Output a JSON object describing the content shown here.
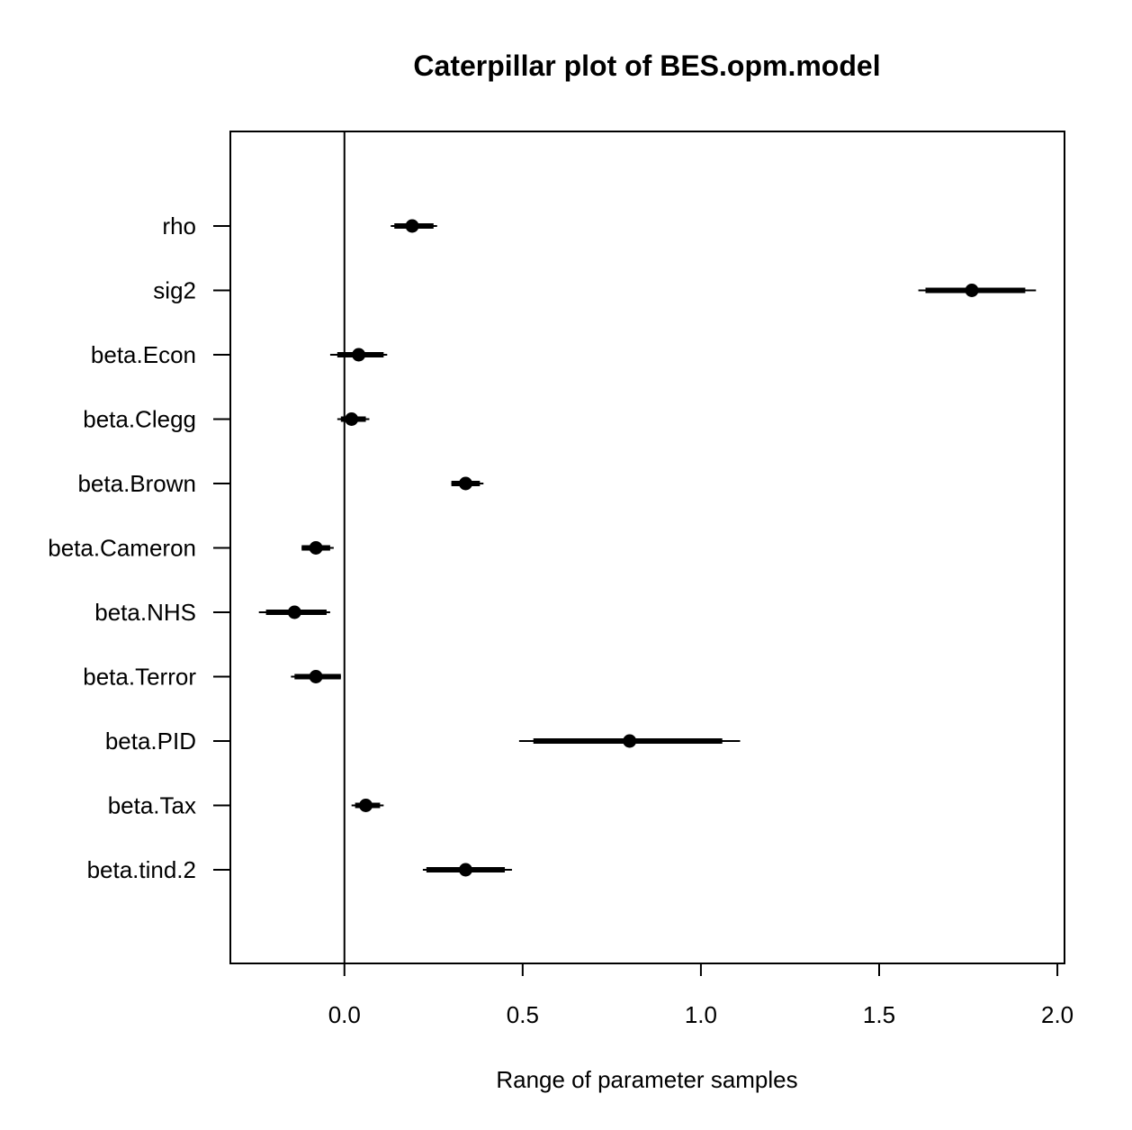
{
  "chart_data": {
    "type": "caterpillar",
    "title": "Caterpillar plot of BES.opm.model",
    "xlabel": "Range of parameter samples",
    "ylabel": "",
    "xlim": [
      -0.32,
      2.02
    ],
    "xticks": [
      0.0,
      0.5,
      1.0,
      1.5,
      2.0
    ],
    "xtick_labels": [
      "0.0",
      "0.5",
      "1.0",
      "1.5",
      "2.0"
    ],
    "reference_line_x": 0.0,
    "grid": false,
    "legend": "none",
    "color": "#000000",
    "parameters": [
      {
        "name": "rho",
        "median": 0.19,
        "inner": [
          0.14,
          0.25
        ],
        "outer": [
          0.13,
          0.26
        ]
      },
      {
        "name": "sig2",
        "median": 1.76,
        "inner": [
          1.63,
          1.91
        ],
        "outer": [
          1.61,
          1.94
        ]
      },
      {
        "name": "beta.Econ",
        "median": 0.04,
        "inner": [
          -0.02,
          0.11
        ],
        "outer": [
          -0.04,
          0.12
        ]
      },
      {
        "name": "beta.Clegg",
        "median": 0.02,
        "inner": [
          -0.01,
          0.06
        ],
        "outer": [
          -0.02,
          0.07
        ]
      },
      {
        "name": "beta.Brown",
        "median": 0.34,
        "inner": [
          0.3,
          0.38
        ],
        "outer": [
          0.3,
          0.39
        ]
      },
      {
        "name": "beta.Cameron",
        "median": -0.08,
        "inner": [
          -0.12,
          -0.04
        ],
        "outer": [
          -0.12,
          -0.03
        ]
      },
      {
        "name": "beta.NHS",
        "median": -0.14,
        "inner": [
          -0.22,
          -0.05
        ],
        "outer": [
          -0.24,
          -0.04
        ]
      },
      {
        "name": "beta.Terror",
        "median": -0.08,
        "inner": [
          -0.14,
          -0.01
        ],
        "outer": [
          -0.15,
          -0.01
        ]
      },
      {
        "name": "beta.PID",
        "median": 0.8,
        "inner": [
          0.53,
          1.06
        ],
        "outer": [
          0.49,
          1.11
        ]
      },
      {
        "name": "beta.Tax",
        "median": 0.06,
        "inner": [
          0.03,
          0.1
        ],
        "outer": [
          0.02,
          0.11
        ]
      },
      {
        "name": "beta.tind.2",
        "median": 0.34,
        "inner": [
          0.23,
          0.45
        ],
        "outer": [
          0.22,
          0.47
        ]
      }
    ]
  }
}
